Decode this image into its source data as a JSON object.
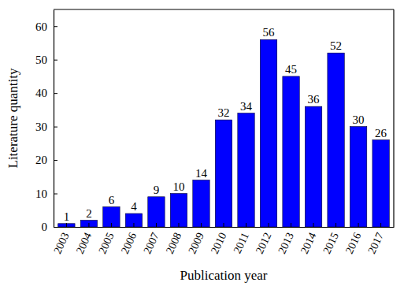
{
  "chart_data": {
    "type": "bar",
    "categories": [
      "2003",
      "2004",
      "2005",
      "2006",
      "2007",
      "2008",
      "2009",
      "2010",
      "2011",
      "2012",
      "2013",
      "2014",
      "2015",
      "2016",
      "2017"
    ],
    "values": [
      1,
      2,
      6,
      4,
      9,
      10,
      14,
      32,
      34,
      56,
      45,
      36,
      52,
      30,
      26
    ],
    "color": "#0000ff",
    "x_label": "Publication year",
    "y_label": "Literature quantity",
    "ylim": [
      0,
      65
    ],
    "yticks": [
      0,
      10,
      20,
      30,
      40,
      50,
      60
    ],
    "data_labels": true,
    "grid": false
  }
}
